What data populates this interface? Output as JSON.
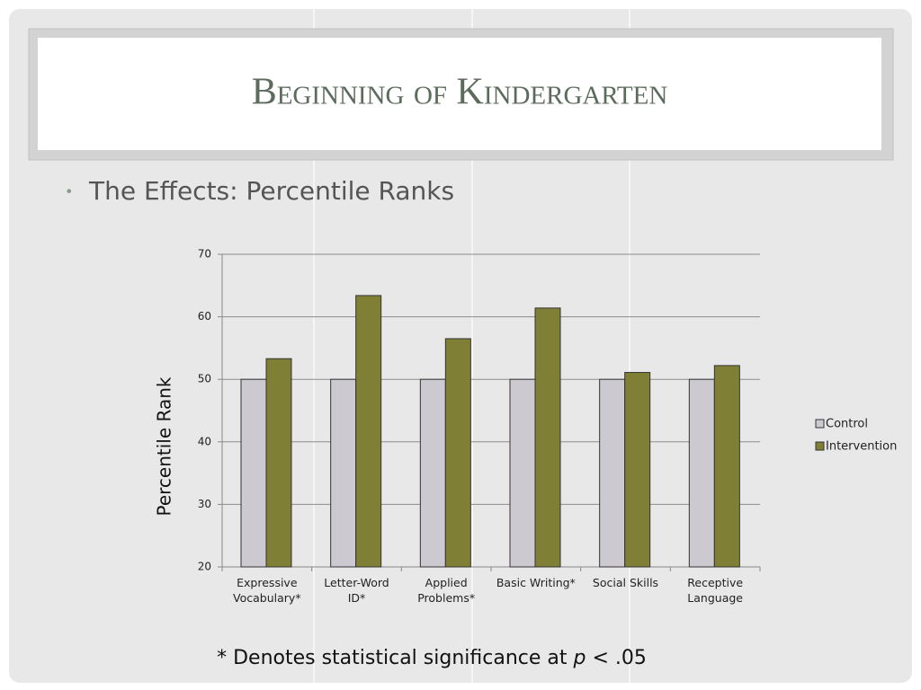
{
  "title": "Beginning of Kindergarten",
  "bullet": "The Effects: Percentile Ranks",
  "footnote": {
    "before": "* Denotes statistical significance at ",
    "italic": "p",
    "after": " < .05"
  },
  "chart_data": {
    "type": "bar",
    "categories": [
      "Expressive Vocabulary*",
      "Letter-Word ID*",
      "Applied Problems*",
      "Basic Writing*",
      "Social Skills",
      "Receptive Language"
    ],
    "series": [
      {
        "name": "Control",
        "color": "#cdc9d1",
        "values": [
          50,
          50,
          50,
          50,
          50,
          50
        ]
      },
      {
        "name": "Intervention",
        "color": "#7f7f35",
        "values": [
          53.3,
          63.4,
          56.5,
          61.4,
          51.1,
          52.2
        ]
      }
    ],
    "ylabel": "Percentile Rank",
    "ylim": [
      20,
      70
    ],
    "yticks": [
      20,
      30,
      40,
      50,
      60,
      70
    ],
    "grid": true,
    "legend": "right"
  }
}
